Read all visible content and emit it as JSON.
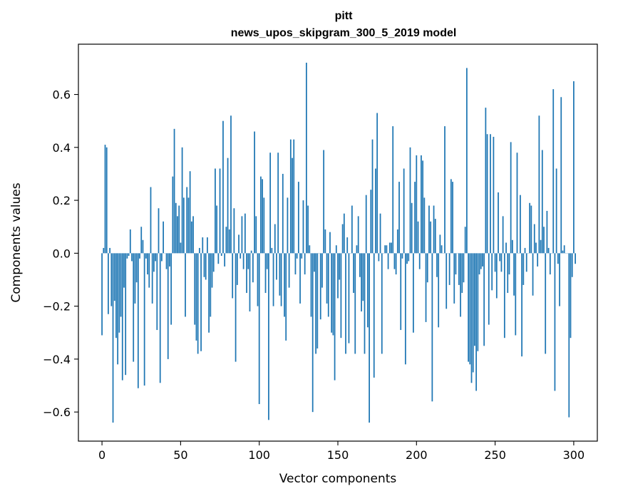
{
  "chart_data": {
    "type": "bar",
    "title_lines": [
      "pitt",
      "news_upos_skipgram_300_5_2019 model"
    ],
    "xlabel": "Vector components",
    "ylabel": "Components values",
    "xlim": [
      -15,
      315
    ],
    "ylim": [
      -0.71,
      0.79
    ],
    "xticks": [
      0,
      50,
      100,
      150,
      200,
      250,
      300
    ],
    "yticks": [
      -0.6,
      -0.4,
      -0.2,
      0.0,
      0.2,
      0.4,
      0.6
    ],
    "ytick_labels": [
      "−0.6",
      "−0.4",
      "−0.2",
      "0.0",
      "0.2",
      "0.4",
      "0.6"
    ],
    "xtick_labels": [
      "0",
      "50",
      "100",
      "150",
      "200",
      "250",
      "300"
    ],
    "bar_color": "#1f77b4",
    "grid": false,
    "values": [
      -0.31,
      0.02,
      0.41,
      0.4,
      -0.23,
      0.02,
      -0.2,
      -0.64,
      -0.18,
      -0.32,
      -0.42,
      -0.3,
      -0.24,
      -0.48,
      -0.13,
      -0.46,
      -0.02,
      -0.01,
      0.09,
      -0.03,
      -0.41,
      -0.19,
      -0.11,
      -0.51,
      -0.02,
      0.1,
      0.05,
      -0.5,
      -0.02,
      -0.08,
      -0.13,
      0.25,
      -0.19,
      -0.07,
      -0.03,
      -0.29,
      0.17,
      -0.49,
      -0.03,
      0.12,
      0.0,
      -0.06,
      -0.4,
      -0.05,
      -0.27,
      0.29,
      0.47,
      0.19,
      0.14,
      0.18,
      0.04,
      0.4,
      0.21,
      -0.24,
      0.25,
      0.21,
      0.31,
      0.12,
      0.14,
      -0.27,
      -0.33,
      -0.38,
      0.02,
      -0.37,
      0.06,
      -0.09,
      -0.1,
      0.06,
      -0.3,
      -0.24,
      -0.13,
      -0.07,
      0.32,
      0.18,
      -0.04,
      0.32,
      -0.01,
      0.5,
      -0.05,
      0.1,
      0.36,
      0.09,
      0.52,
      -0.17,
      0.17,
      -0.41,
      -0.12,
      0.07,
      -0.02,
      0.14,
      -0.06,
      0.15,
      -0.15,
      -0.06,
      -0.22,
      0.01,
      -0.11,
      0.46,
      0.14,
      -0.2,
      -0.57,
      0.29,
      0.28,
      0.21,
      -0.15,
      -0.06,
      -0.63,
      0.38,
      0.02,
      -0.2,
      0.11,
      -0.1,
      0.38,
      -0.16,
      -0.2,
      0.3,
      -0.24,
      -0.33,
      0.21,
      -0.13,
      0.43,
      0.36,
      0.43,
      -0.08,
      -0.02,
      0.27,
      -0.19,
      -0.02,
      0.2,
      -0.08,
      0.72,
      0.18,
      0.03,
      -0.24,
      -0.6,
      -0.07,
      -0.38,
      -0.36,
      0.0,
      -0.25,
      -0.13,
      0.39,
      0.09,
      -0.19,
      -0.24,
      0.08,
      -0.3,
      -0.31,
      -0.48,
      0.03,
      -0.17,
      -0.1,
      -0.32,
      0.11,
      0.15,
      -0.38,
      0.06,
      -0.34,
      0.0,
      0.18,
      -0.15,
      -0.38,
      0.03,
      0.14,
      -0.09,
      -0.22,
      -0.18,
      -0.38,
      0.22,
      -0.28,
      -0.64,
      0.24,
      0.43,
      -0.47,
      0.32,
      0.53,
      -0.03,
      0.15,
      -0.38,
      0.0,
      0.03,
      0.03,
      -0.06,
      0.04,
      0.04,
      0.48,
      -0.06,
      -0.08,
      0.09,
      0.27,
      -0.29,
      -0.02,
      0.32,
      -0.42,
      -0.04,
      -0.03,
      0.4,
      0.19,
      -0.3,
      0.27,
      0.37,
      0.12,
      -0.06,
      0.37,
      0.35,
      0.21,
      -0.26,
      -0.11,
      0.18,
      0.12,
      -0.56,
      0.18,
      0.13,
      -0.09,
      -0.28,
      0.07,
      0.03,
      0.0,
      0.48,
      -0.21,
      0.0,
      -0.12,
      0.28,
      0.27,
      -0.19,
      -0.08,
      0.0,
      -0.12,
      -0.24,
      -0.15,
      -0.11,
      0.1,
      0.7,
      -0.41,
      -0.42,
      -0.49,
      -0.45,
      -0.35,
      -0.52,
      -0.37,
      -0.08,
      -0.06,
      -0.05,
      -0.35,
      0.55,
      0.45,
      -0.27,
      0.45,
      -0.14,
      0.44,
      -0.07,
      -0.17,
      0.23,
      -0.03,
      -0.07,
      0.14,
      -0.32,
      0.04,
      -0.15,
      -0.08,
      0.42,
      0.05,
      -0.16,
      -0.31,
      0.38,
      0.0,
      0.22,
      -0.39,
      -0.12,
      0.02,
      -0.07,
      0.0,
      0.19,
      0.18,
      -0.16,
      0.11,
      0.04,
      -0.05,
      0.52,
      0.05,
      0.39,
      0.1,
      -0.38,
      0.16,
      0.02,
      -0.08,
      0.0,
      0.62,
      -0.52,
      0.32,
      -0.04,
      -0.2,
      0.59,
      0.01,
      0.03,
      0.0,
      0.0,
      -0.62,
      -0.32,
      -0.09,
      0.65,
      -0.04
    ]
  }
}
